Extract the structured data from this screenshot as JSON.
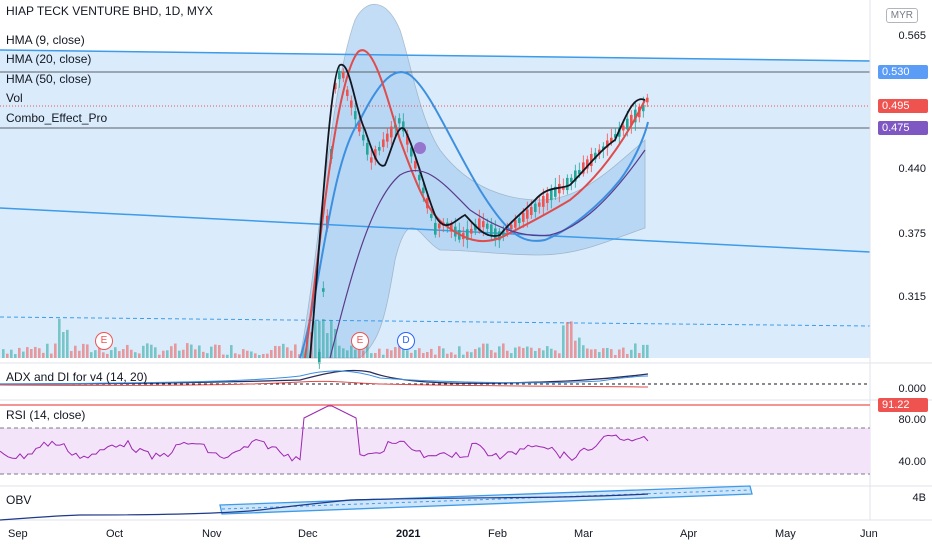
{
  "header": {
    "symbol_line": "HIAP TECK VENTURE BHD, 1D, MYX",
    "currency": "MYR"
  },
  "legend": [
    "HMA (9, close)",
    "HMA (20, close)",
    "HMA (50, close)",
    "Vol",
    "Combo_Effect_Pro"
  ],
  "price_axis": {
    "ticks": [
      "0.565",
      "0.440",
      "0.375",
      "0.315"
    ],
    "badges": [
      {
        "label": "0.530",
        "color": "#5b9cf6"
      },
      {
        "label": "0.495",
        "color": "#ef5350"
      },
      {
        "label": "0.475",
        "color": "#7e57c2"
      }
    ]
  },
  "adx": {
    "label": "ADX and DI for v4 (14, 20)",
    "tick": "0.000"
  },
  "rsi": {
    "label": "RSI (14, close)",
    "badge": "91.22",
    "ticks": [
      "80.00",
      "40.00"
    ]
  },
  "obv": {
    "label": "OBV",
    "tick": "4B"
  },
  "time_axis": [
    "Sep",
    "Oct",
    "Nov",
    "Dec",
    "2021",
    "Feb",
    "Mar",
    "Apr",
    "May",
    "Jun"
  ],
  "events": [
    {
      "letter": "E",
      "color": "#ef5350"
    },
    {
      "letter": "E",
      "color": "#ef5350"
    },
    {
      "letter": "D",
      "color": "#2962ff"
    }
  ],
  "colors": {
    "up": "#26a69a",
    "down": "#ef5350",
    "hma9": "#131722",
    "hma20": "#e04b4b",
    "hma50": "#3d8fe0",
    "channel": "#3d9be9",
    "band_fill": "#bfdcf7"
  }
}
